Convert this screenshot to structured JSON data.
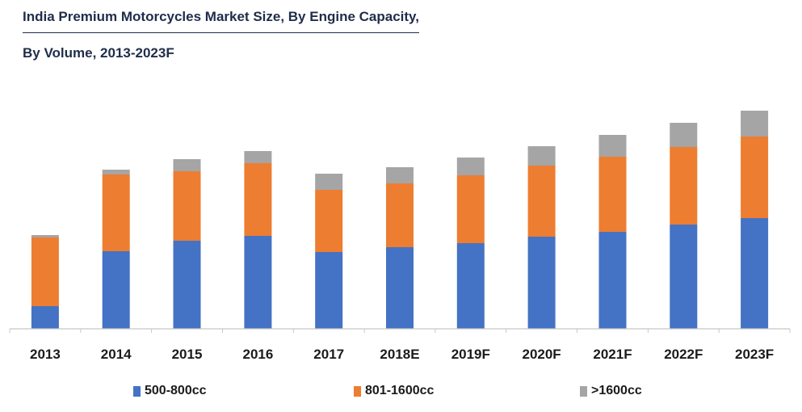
{
  "title_line1": "India Premium Motorcycles Market Size, By Engine Capacity,",
  "title_line2": "By Volume, 2013-2023F",
  "chart_data": {
    "type": "bar",
    "stacked": true,
    "title": "India Premium Motorcycles Market Size, By Engine Capacity, By Volume, 2013-2023F",
    "xlabel": "",
    "ylabel": "",
    "categories": [
      "2013",
      "2014",
      "2015",
      "2016",
      "2017",
      "2018E",
      "2019F",
      "2020F",
      "2021F",
      "2022F",
      "2023F"
    ],
    "series": [
      {
        "name": "500-800cc",
        "color": "#4472c4",
        "values": [
          28,
          96,
          109,
          115,
          95,
          101,
          106,
          114,
          120,
          129,
          137
        ]
      },
      {
        "name": "801-1600cc",
        "color": "#ed7d31",
        "values": [
          85,
          95,
          86,
          90,
          77,
          79,
          84,
          88,
          93,
          96,
          101
        ]
      },
      {
        "name": ">1600cc",
        "color": "#a5a5a5",
        "values": [
          3,
          6,
          15,
          15,
          20,
          20,
          22,
          24,
          27,
          30,
          32
        ]
      }
    ],
    "ylim": [
      0,
      270
    ],
    "grid": false,
    "legend_position": "bottom"
  }
}
